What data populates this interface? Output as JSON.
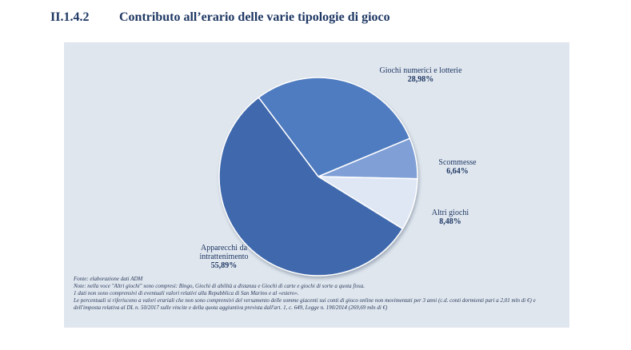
{
  "heading": {
    "number": "II.1.4.2",
    "title": "Contributo all’erario delle varie tipologie di gioco"
  },
  "colors": {
    "heading": "#1f3864",
    "panel_bg": "#dfe6ee",
    "slices": [
      "#4f7cc0",
      "#7f9fd6",
      "#dfe7f5",
      "#3f69ad"
    ]
  },
  "chart_data": {
    "type": "pie",
    "slices": [
      {
        "label": "Giochi numerici e lotterie",
        "value": 28.98,
        "display": "28,98%"
      },
      {
        "label": "Scommesse",
        "value": 6.64,
        "display": "6,64%"
      },
      {
        "label": "Altri giochi",
        "value": 8.48,
        "display": "8,48%"
      },
      {
        "label": "Apparecchi da intrattenimento",
        "value": 55.89,
        "display": "55,89%"
      }
    ]
  },
  "labels": {
    "giochi_name": "Giochi numerici e lotterie",
    "giochi_pct": "28,98%",
    "scommesse_name": "Scommesse",
    "scommesse_pct": "6,64%",
    "altri_name": "Altri giochi",
    "altri_pct": "8,48%",
    "apparecchi_name_1": "Apparecchi da",
    "apparecchi_name_2": "intrattenimento",
    "apparecchi_pct": "55,89%"
  },
  "notes": [
    "Fonte: elaborazione dati ADM",
    "Note: nella voce \"Altri giochi\" sono compresi: Bingo, Giochi di abilità a distanza e Giochi di carte e giochi di sorte a quota fissa.",
    "1 dati non sono comprensivi di eventuali valori relativi alla Repubblica di San Marino e al «estero».",
    "Le percentuali si riferiscono a valori erariali che non sono comprensivi del versamento delle somme giacenti sui conti di gioco online non movimentati per 3 anni (c.d. conti dormienti pari a 2,01 mln di €) e dell'imposta relativa al DL n. 50/2017 sulle vincite e della quota aggiuntiva prevista dall'art. 1, c. 649, Legge n. 190/2014 (269,69 mln di €)"
  ]
}
